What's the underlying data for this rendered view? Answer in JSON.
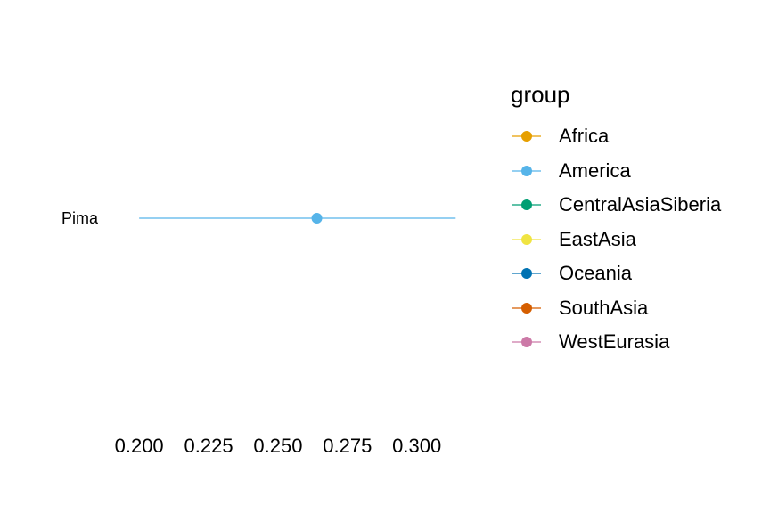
{
  "chart_data": {
    "type": "scatter",
    "title": "",
    "xlabel": "",
    "ylabel": "",
    "xlim": [
      0.19,
      0.32
    ],
    "x_ticks": [
      "0.200",
      "0.225",
      "0.250",
      "0.275",
      "0.300"
    ],
    "x_tick_values": [
      0.2,
      0.225,
      0.25,
      0.275,
      0.3
    ],
    "categories": [
      "Pima"
    ],
    "points": [
      {
        "label": "Pima",
        "group": "America",
        "estimate": 0.264,
        "lower": 0.2,
        "upper": 0.314
      }
    ],
    "grid": false,
    "legend_position": "right",
    "legend": {
      "title": "group",
      "entries": [
        {
          "name": "Africa",
          "color": "#E69F00"
        },
        {
          "name": "America",
          "color": "#56B4E9"
        },
        {
          "name": "CentralAsiaSiberia",
          "color": "#009E73"
        },
        {
          "name": "EastAsia",
          "color": "#F0E442"
        },
        {
          "name": "Oceania",
          "color": "#0072B2"
        },
        {
          "name": "SouthAsia",
          "color": "#D55E00"
        },
        {
          "name": "WestEurasia",
          "color": "#CC79A7"
        }
      ]
    }
  }
}
